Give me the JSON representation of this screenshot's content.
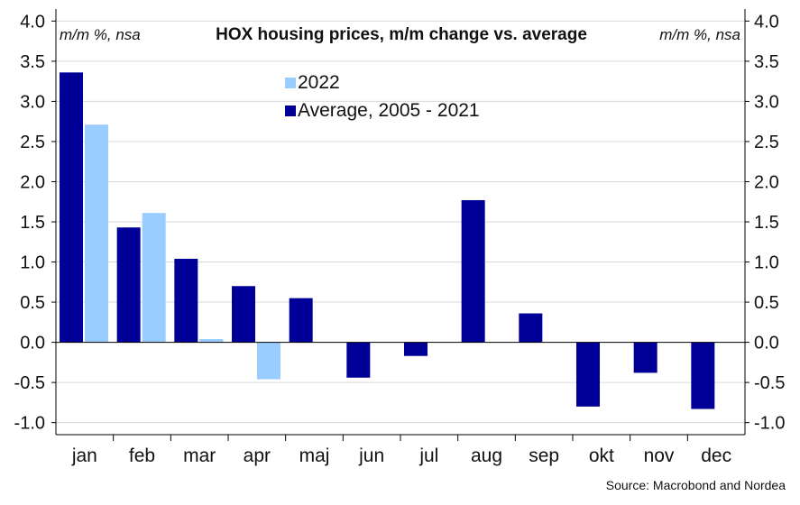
{
  "chart_data": {
    "type": "bar",
    "title": "HOX housing prices, m/m change vs. average",
    "unit_left": "m/m %, nsa",
    "unit_right": "m/m %, nsa",
    "source": "Source: Macrobond and Nordea",
    "categories": [
      "jan",
      "feb",
      "mar",
      "apr",
      "maj",
      "jun",
      "jul",
      "aug",
      "sep",
      "okt",
      "nov",
      "dec"
    ],
    "series": [
      {
        "name": "Average, 2005 - 2021",
        "color": "#000099",
        "values": [
          3.36,
          1.43,
          1.04,
          0.7,
          0.55,
          -0.44,
          -0.17,
          1.77,
          0.36,
          -0.8,
          -0.38,
          -0.83
        ]
      },
      {
        "name": "2022",
        "color": "#99ccff",
        "values": [
          2.71,
          1.61,
          0.04,
          -0.46,
          null,
          null,
          null,
          null,
          null,
          null,
          null,
          null
        ]
      }
    ],
    "legend_order": [
      1,
      0
    ],
    "ylim": [
      -1.15,
      4.15
    ],
    "yticks": [
      "4.0",
      "3.5",
      "3.0",
      "2.5",
      "2.0",
      "1.5",
      "1.0",
      "0.5",
      "0.0",
      "-0.5",
      "-1.0"
    ],
    "grid": true,
    "legend_position": "top-center"
  }
}
